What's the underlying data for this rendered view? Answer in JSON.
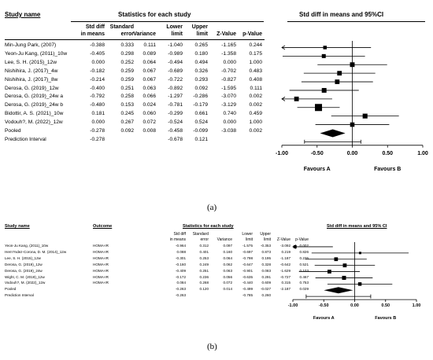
{
  "chart_data": [
    {
      "type": "forest",
      "panel_label": "(a)",
      "header": {
        "study_name": "Study name",
        "stats_title": "Statistics for each study",
        "plot_title": "Std diff in means and 95%CI",
        "columns": [
          "Std diff in means",
          "Standard error",
          "Variance",
          "Lower limit",
          "Upper limit",
          "Z-Value",
          "p-Value"
        ]
      },
      "rows": [
        {
          "study": "Min-Jung Park, (2007)",
          "est": "-0.388",
          "se": "0.333",
          "var": "0.111",
          "lo": "-1.040",
          "hi": "0.265",
          "z": "-1.165",
          "p": "0.244"
        },
        {
          "study": "Yeon-Ju Kang, (2011)_10w",
          "est": "-0.405",
          "se": "0.298",
          "var": "0.089",
          "lo": "-0.989",
          "hi": "0.180",
          "z": "-1.358",
          "p": "0.175"
        },
        {
          "study": "Lee, S. H. (2015)_12w",
          "est": "0.000",
          "se": "0.252",
          "var": "0.064",
          "lo": "-0.494",
          "hi": "0.494",
          "z": "0.000",
          "p": "1.000"
        },
        {
          "study": "Nishihira, J. (2017)_4w",
          "est": "-0.182",
          "se": "0.259",
          "var": "0.067",
          "lo": "-0.689",
          "hi": "0.326",
          "z": "-0.702",
          "p": "0.483"
        },
        {
          "study": "Nishihira, J. (2017)_8w",
          "est": "-0.214",
          "se": "0.259",
          "var": "0.067",
          "lo": "-0.722",
          "hi": "0.293",
          "z": "-0.827",
          "p": "0.408"
        },
        {
          "study": "Derosa, G. (2019)_12w",
          "est": "-0.400",
          "se": "0.251",
          "var": "0.063",
          "lo": "-0.892",
          "hi": "0.092",
          "z": "-1.595",
          "p": "0.111"
        },
        {
          "study": "Derosa, G. (2019)_24w a",
          "est": "-0.792",
          "se": "0.258",
          "var": "0.066",
          "lo": "-1.297",
          "hi": "-0.286",
          "z": "-3.070",
          "p": "0.002"
        },
        {
          "study": "Derosa, G. (2019)_24w b",
          "est": "-0.480",
          "se": "0.153",
          "var": "0.024",
          "lo": "-0.781",
          "hi": "-0.179",
          "z": "-3.129",
          "p": "0.002"
        },
        {
          "study": "Bidottir, A. S. (2021)_10w",
          "est": "0.181",
          "se": "0.245",
          "var": "0.060",
          "lo": "-0.299",
          "hi": "0.661",
          "z": "0.740",
          "p": "0.459"
        },
        {
          "study": "Vodouh?, M. (2022)_12w",
          "est": "0.000",
          "se": "0.267",
          "var": "0.072",
          "lo": "-0.524",
          "hi": "0.524",
          "z": "0.000",
          "p": "1.000"
        }
      ],
      "pooled": {
        "study": "Pooled",
        "est": "-0.278",
        "se": "0.092",
        "var": "0.008",
        "lo": "-0.458",
        "hi": "-0.099",
        "z": "-3.038",
        "p": "0.002"
      },
      "prediction": {
        "study": "Prediction Interval",
        "est": "-0.278",
        "lo": "-0.678",
        "hi": "0.121"
      },
      "x_axis": {
        "range": [
          -1,
          1
        ],
        "ticks": [
          "-1.00",
          "-0.50",
          "0.00",
          "0.50",
          "1.00"
        ]
      },
      "favours": {
        "left": "Favours A",
        "right": "Favours B"
      }
    },
    {
      "type": "forest",
      "panel_label": "(b)",
      "header": {
        "study_name": "Study name",
        "outcome": "Outcome",
        "stats_title": "Statistics for each study",
        "plot_title": "Std diff in means and 95% CI",
        "columns": [
          "Std diff in means",
          "Standard error",
          "Variance",
          "Lower limit",
          "Upper limit",
          "Z-Value",
          "p-Value"
        ]
      },
      "rows": [
        {
          "study": "Yeon-Ju Kang, (2011)_10w",
          "outcome": "HOMA-IR",
          "est": "-0.964",
          "se": "0.312",
          "var": "0.097",
          "lo": "-1.575",
          "hi": "-0.353",
          "z": "-3.092",
          "p": "0.002"
        },
        {
          "study": "Hern?ndez-Corona, D. M. (2014)_12w",
          "outcome": "HOMA-IR",
          "est": "0.088",
          "se": "0.401",
          "var": "0.160",
          "lo": "-0.697",
          "hi": "0.873",
          "z": "0.219",
          "p": "0.826"
        },
        {
          "study": "Lee, S. H. (2015)_12w",
          "outcome": "HOMA-IR",
          "est": "-0.301",
          "se": "0.253",
          "var": "0.064",
          "lo": "-0.798",
          "hi": "0.195",
          "z": "-1.187",
          "p": "0.235"
        },
        {
          "study": "Derosa, G. (2019)_12w",
          "outcome": "HOMA-IR",
          "est": "-0.160",
          "se": "0.249",
          "var": "0.062",
          "lo": "-0.647",
          "hi": "0.328",
          "z": "-0.642",
          "p": "0.521"
        },
        {
          "study": "Derosa, G. (2019)_24w",
          "outcome": "HOMA-IR",
          "est": "-0.409",
          "se": "0.251",
          "var": "0.063",
          "lo": "-0.901",
          "hi": "0.083",
          "z": "-1.629",
          "p": "0.103"
        },
        {
          "study": "Wight, C. M. (2019)_12w",
          "outcome": "HOMA-IR",
          "est": "-0.172",
          "se": "0.236",
          "var": "0.056",
          "lo": "-0.635",
          "hi": "0.291",
          "z": "-0.727",
          "p": "0.467"
        },
        {
          "study": "Vodouh?, M. (2022)_12w",
          "outcome": "HOMA-IR",
          "est": "0.084",
          "se": "0.268",
          "var": "0.072",
          "lo": "-0.440",
          "hi": "0.609",
          "z": "0.315",
          "p": "0.753"
        }
      ],
      "pooled": {
        "study": "Pooled",
        "est": "-0.263",
        "se": "0.120",
        "var": "0.014",
        "lo": "-0.499",
        "hi": "-0.027",
        "z": "-2.187",
        "p": "0.029"
      },
      "prediction": {
        "study": "Prediction Interval",
        "est": "-0.263",
        "lo": "-0.785",
        "hi": "0.260"
      },
      "x_axis": {
        "range": [
          -1,
          1
        ],
        "ticks": [
          "-1.00",
          "-0.50",
          "0.00",
          "0.50",
          "1.00"
        ]
      },
      "favours": {
        "left": "Favours A",
        "right": "Favours B"
      }
    }
  ]
}
